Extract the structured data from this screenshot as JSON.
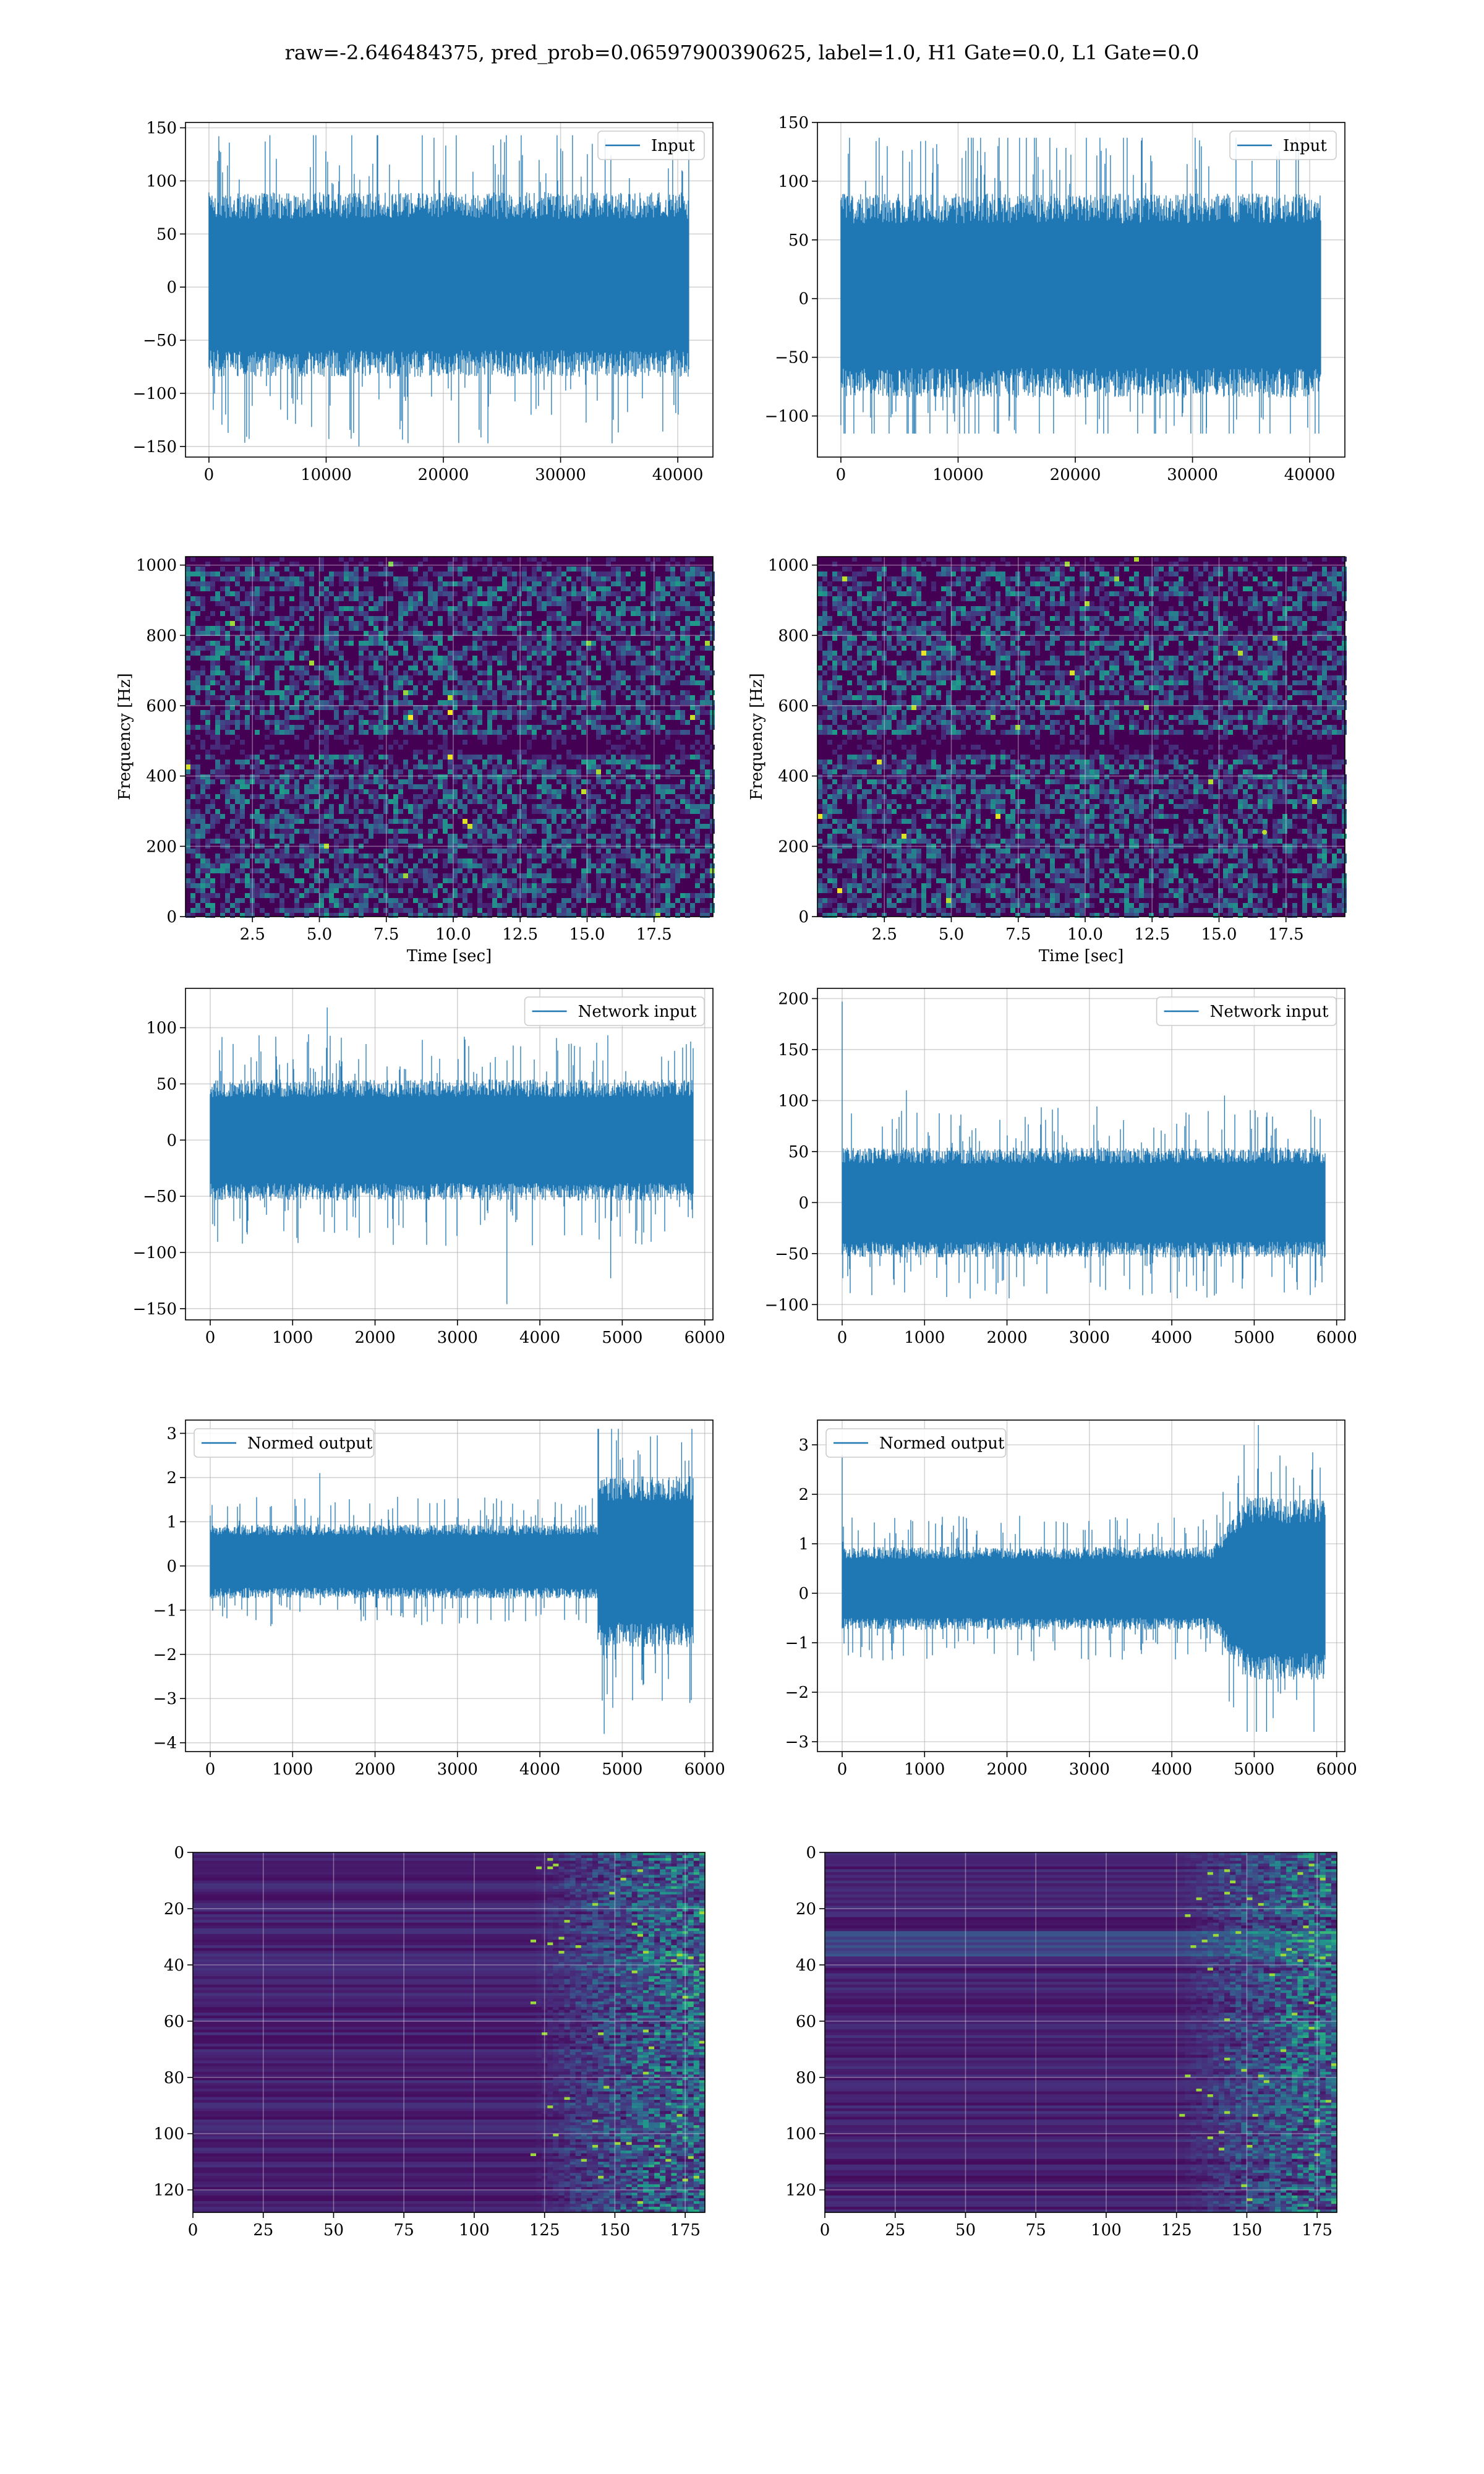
{
  "title": "raw=-2.646484375, pred_prob=0.06597900390625, label=1.0, H1 Gate=0.0, L1 Gate=0.0",
  "colors": {
    "line": "#1f77b4",
    "grid": "#b0b0b0",
    "frame": "#000000",
    "viridis_low": "#440154",
    "viridis_mid": "#21918c",
    "viridis_high": "#fde725"
  },
  "chart_data": [
    {
      "type": "line",
      "title": "",
      "xlabel": "",
      "ylabel": "",
      "legend": "top-right",
      "grid": true,
      "xlim": [
        -2000,
        43000
      ],
      "ylim": [
        -160,
        155
      ],
      "xticks": [
        0,
        10000,
        20000,
        30000,
        40000
      ],
      "yticks": [
        -150,
        -100,
        -50,
        0,
        50,
        100,
        150
      ],
      "series": [
        {
          "name": "Input",
          "n_points": 40960,
          "x_range": [
            0,
            40959
          ],
          "y_min": -150,
          "y_max": 143,
          "typical_band": [
            -70,
            75
          ]
        }
      ]
    },
    {
      "type": "line",
      "title": "",
      "xlabel": "",
      "ylabel": "",
      "legend": "top-right",
      "grid": true,
      "xlim": [
        -2000,
        43000
      ],
      "ylim": [
        -135,
        150
      ],
      "xticks": [
        0,
        10000,
        20000,
        30000,
        40000
      ],
      "yticks": [
        -100,
        -50,
        0,
        50,
        100,
        150
      ],
      "series": [
        {
          "name": "Input",
          "n_points": 40960,
          "x_range": [
            0,
            40959
          ],
          "y_min": -115,
          "y_max": 137,
          "typical_band": [
            -70,
            75
          ]
        }
      ]
    },
    {
      "type": "heatmap",
      "title": "",
      "xlabel": "Time [sec]",
      "ylabel": "Frequency [Hz]",
      "colormap": "viridis",
      "grid": true,
      "xlim": [
        0,
        19.7
      ],
      "ylim": [
        0,
        1024
      ],
      "xticks": [
        2.5,
        5.0,
        7.5,
        10.0,
        12.5,
        15.0,
        17.5
      ],
      "yticks": [
        0,
        200,
        400,
        600,
        800,
        1000
      ],
      "features": "broadband noise with a dark low-power horizontal band near 500 Hz and a few bright speckles"
    },
    {
      "type": "heatmap",
      "title": "",
      "xlabel": "Time [sec]",
      "ylabel": "Frequency [Hz]",
      "colormap": "viridis",
      "grid": true,
      "xlim": [
        0,
        19.7
      ],
      "ylim": [
        0,
        1024
      ],
      "xticks": [
        2.5,
        5.0,
        7.5,
        10.0,
        12.5,
        15.0,
        17.5
      ],
      "yticks": [
        0,
        200,
        400,
        600,
        800,
        1000
      ],
      "features": "broadband noise with a dark low-power horizontal band near 500 Hz; bright speckle near t=16.7 s, f=240 Hz"
    },
    {
      "type": "line",
      "title": "",
      "xlabel": "",
      "ylabel": "",
      "legend": "top-right",
      "grid": true,
      "xlim": [
        -300,
        6100
      ],
      "ylim": [
        -160,
        135
      ],
      "xticks": [
        0,
        1000,
        2000,
        3000,
        4000,
        5000,
        6000
      ],
      "yticks": [
        -150,
        -100,
        -50,
        0,
        50,
        100
      ],
      "series": [
        {
          "name": "Network input",
          "n_points": 5860,
          "x_range": [
            0,
            5859
          ],
          "y_min": -146,
          "y_max": 118,
          "typical_band": [
            -45,
            45
          ]
        }
      ]
    },
    {
      "type": "line",
      "title": "",
      "xlabel": "",
      "ylabel": "",
      "legend": "top-right",
      "grid": true,
      "xlim": [
        -300,
        6100
      ],
      "ylim": [
        -115,
        210
      ],
      "xticks": [
        0,
        1000,
        2000,
        3000,
        4000,
        5000,
        6000
      ],
      "yticks": [
        -100,
        -50,
        0,
        50,
        100,
        150,
        200
      ],
      "series": [
        {
          "name": "Network input",
          "n_points": 5860,
          "x_range": [
            0,
            5859
          ],
          "y_min": -102,
          "y_max": 197,
          "typical_band": [
            -45,
            45
          ],
          "features": "single spike near x=0 reaching about 197"
        }
      ]
    },
    {
      "type": "line",
      "title": "",
      "xlabel": "",
      "ylabel": "",
      "legend": "top-left",
      "grid": true,
      "xlim": [
        -300,
        6100
      ],
      "ylim": [
        -4.2,
        3.3
      ],
      "xticks": [
        0,
        1000,
        2000,
        3000,
        4000,
        5000,
        6000
      ],
      "yticks": [
        -4,
        -3,
        -2,
        -1,
        0,
        1,
        2,
        3
      ],
      "series": [
        {
          "name": "Normed output",
          "n_points": 5860,
          "x_range": [
            0,
            5859
          ],
          "y_min": -3.8,
          "y_max": 3.1,
          "typical_band": [
            -0.6,
            0.8
          ],
          "features": "amplitude increases sharply after x≈4700 (band about ±1.7)"
        }
      ]
    },
    {
      "type": "line",
      "title": "",
      "xlabel": "",
      "ylabel": "",
      "legend": "top-left",
      "grid": true,
      "xlim": [
        -300,
        6100
      ],
      "ylim": [
        -3.2,
        3.5
      ],
      "xticks": [
        0,
        1000,
        2000,
        3000,
        4000,
        5000,
        6000
      ],
      "yticks": [
        -3,
        -2,
        -1,
        0,
        1,
        2,
        3
      ],
      "series": [
        {
          "name": "Normed output",
          "n_points": 5860,
          "x_range": [
            0,
            5859
          ],
          "y_min": -2.8,
          "y_max": 3.4,
          "typical_band": [
            -0.6,
            0.8
          ],
          "features": "spike near x=0 to about 2.8; amplitude grows after x≈4500 (band about ±1.5)"
        }
      ]
    },
    {
      "type": "heatmap",
      "title": "",
      "xlabel": "",
      "ylabel": "",
      "colormap": "viridis",
      "grid": true,
      "xlim": [
        0,
        182
      ],
      "ylim": [
        128,
        0
      ],
      "xticks": [
        0,
        25,
        50,
        75,
        100,
        125,
        150,
        175
      ],
      "yticks": [
        0,
        20,
        40,
        60,
        80,
        100,
        120
      ],
      "rows": 128,
      "cols": 182,
      "features": "horizontal banded rows, dark for x<125, increasingly bright textured activity for x between 125 and 182"
    },
    {
      "type": "heatmap",
      "title": "",
      "xlabel": "",
      "ylabel": "",
      "colormap": "viridis",
      "grid": true,
      "xlim": [
        0,
        182
      ],
      "ylim": [
        128,
        0
      ],
      "xticks": [
        0,
        25,
        50,
        75,
        100,
        125,
        150,
        175
      ],
      "yticks": [
        0,
        20,
        40,
        60,
        80,
        100,
        120
      ],
      "rows": 128,
      "cols": 182,
      "features": "horizontal banded rows with lighter band near rows 28-36, dark for x<125, bright activity concentrated for x between 140 and 182"
    }
  ]
}
